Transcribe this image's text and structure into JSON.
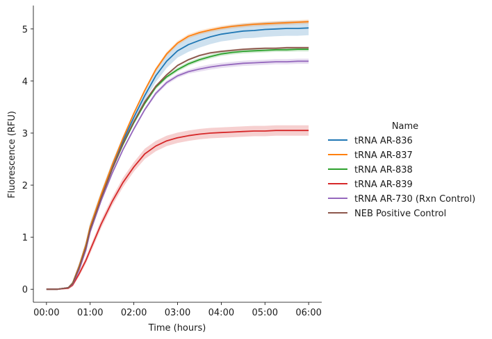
{
  "chart_data": {
    "type": "line",
    "title": "",
    "xlabel": "Time (hours)",
    "ylabel": "Fluorescence (RFU)",
    "xlim": [
      -0.3,
      6.3
    ],
    "ylim": [
      -0.25,
      5.45
    ],
    "x_ticks": [
      {
        "value": 0,
        "label": "00:00"
      },
      {
        "value": 1,
        "label": "01:00"
      },
      {
        "value": 2,
        "label": "02:00"
      },
      {
        "value": 3,
        "label": "03:00"
      },
      {
        "value": 4,
        "label": "04:00"
      },
      {
        "value": 5,
        "label": "05:00"
      },
      {
        "value": 6,
        "label": "06:00"
      }
    ],
    "y_ticks": [
      {
        "value": 0,
        "label": "0"
      },
      {
        "value": 1,
        "label": "1"
      },
      {
        "value": 2,
        "label": "2"
      },
      {
        "value": 3,
        "label": "3"
      },
      {
        "value": 4,
        "label": "4"
      },
      {
        "value": 5,
        "label": "5"
      }
    ],
    "legend_title": "Name",
    "legend_position": "right",
    "grid": false,
    "band": "confidence interval (shaded)",
    "x": [
      0,
      0.25,
      0.5,
      0.6,
      0.75,
      0.9,
      1.0,
      1.25,
      1.5,
      1.75,
      2.0,
      2.25,
      2.5,
      2.75,
      3.0,
      3.25,
      3.5,
      3.75,
      4.0,
      4.25,
      4.5,
      4.75,
      5.0,
      5.25,
      5.5,
      5.75,
      6.0
    ],
    "series": [
      {
        "name": "tRNA AR-836",
        "color": "#1f77b4",
        "values": [
          0,
          0,
          0.03,
          0.12,
          0.45,
          0.85,
          1.2,
          1.8,
          2.35,
          2.85,
          3.3,
          3.72,
          4.1,
          4.38,
          4.58,
          4.7,
          4.78,
          4.85,
          4.9,
          4.93,
          4.96,
          4.97,
          4.99,
          5.0,
          5.01,
          5.01,
          5.02
        ],
        "ci": [
          0,
          0,
          0.02,
          0.04,
          0.06,
          0.07,
          0.08,
          0.08,
          0.09,
          0.09,
          0.1,
          0.1,
          0.12,
          0.13,
          0.13,
          0.14,
          0.14,
          0.14,
          0.14,
          0.14,
          0.14,
          0.14,
          0.14,
          0.14,
          0.14,
          0.14,
          0.14
        ]
      },
      {
        "name": "tRNA AR-837",
        "color": "#ff7f0e",
        "values": [
          0,
          0,
          0.03,
          0.12,
          0.45,
          0.85,
          1.2,
          1.82,
          2.38,
          2.9,
          3.38,
          3.82,
          4.22,
          4.52,
          4.73,
          4.86,
          4.93,
          4.98,
          5.02,
          5.05,
          5.07,
          5.09,
          5.1,
          5.11,
          5.12,
          5.13,
          5.14
        ],
        "ci": [
          0,
          0,
          0.01,
          0.02,
          0.03,
          0.03,
          0.03,
          0.03,
          0.03,
          0.03,
          0.03,
          0.03,
          0.04,
          0.04,
          0.04,
          0.04,
          0.04,
          0.04,
          0.04,
          0.04,
          0.04,
          0.04,
          0.04,
          0.04,
          0.04,
          0.04,
          0.04
        ]
      },
      {
        "name": "tRNA AR-838",
        "color": "#2ca02c",
        "values": [
          0,
          0,
          0.03,
          0.11,
          0.42,
          0.8,
          1.15,
          1.75,
          2.3,
          2.78,
          3.2,
          3.57,
          3.88,
          4.08,
          4.22,
          4.33,
          4.41,
          4.47,
          4.52,
          4.55,
          4.57,
          4.58,
          4.59,
          4.6,
          4.6,
          4.61,
          4.61
        ],
        "ci": [
          0,
          0,
          0.01,
          0.02,
          0.03,
          0.03,
          0.03,
          0.03,
          0.03,
          0.03,
          0.03,
          0.03,
          0.04,
          0.04,
          0.04,
          0.04,
          0.04,
          0.04,
          0.04,
          0.04,
          0.04,
          0.04,
          0.04,
          0.04,
          0.04,
          0.04,
          0.04
        ]
      },
      {
        "name": "tRNA AR-839",
        "color": "#d62728",
        "values": [
          0,
          0,
          0.02,
          0.08,
          0.3,
          0.55,
          0.75,
          1.25,
          1.68,
          2.05,
          2.35,
          2.6,
          2.75,
          2.85,
          2.91,
          2.95,
          2.98,
          3.0,
          3.01,
          3.02,
          3.03,
          3.04,
          3.04,
          3.05,
          3.05,
          3.05,
          3.05
        ],
        "ci": [
          0,
          0,
          0.02,
          0.03,
          0.05,
          0.06,
          0.07,
          0.08,
          0.08,
          0.09,
          0.09,
          0.1,
          0.1,
          0.1,
          0.1,
          0.1,
          0.1,
          0.1,
          0.1,
          0.1,
          0.1,
          0.1,
          0.1,
          0.1,
          0.1,
          0.1,
          0.1
        ]
      },
      {
        "name": "tRNA AR-730 (Rxn Control)",
        "color": "#9467bd",
        "values": [
          0,
          0,
          0.03,
          0.1,
          0.38,
          0.75,
          1.1,
          1.7,
          2.22,
          2.68,
          3.08,
          3.45,
          3.76,
          3.97,
          4.1,
          4.18,
          4.23,
          4.27,
          4.3,
          4.32,
          4.34,
          4.35,
          4.36,
          4.37,
          4.37,
          4.38,
          4.38
        ],
        "ci": [
          0,
          0,
          0.01,
          0.02,
          0.03,
          0.03,
          0.03,
          0.03,
          0.03,
          0.03,
          0.03,
          0.03,
          0.04,
          0.04,
          0.04,
          0.04,
          0.05,
          0.05,
          0.05,
          0.05,
          0.05,
          0.05,
          0.05,
          0.05,
          0.05,
          0.05,
          0.05
        ]
      },
      {
        "name": "NEB Positive Control",
        "color": "#8c564b",
        "values": [
          0,
          0,
          0.03,
          0.11,
          0.42,
          0.8,
          1.15,
          1.75,
          2.3,
          2.8,
          3.22,
          3.6,
          3.9,
          4.12,
          4.3,
          4.41,
          4.49,
          4.54,
          4.57,
          4.59,
          4.61,
          4.62,
          4.63,
          4.63,
          4.64,
          4.64,
          4.64
        ],
        "ci": [
          0,
          0,
          0.01,
          0.02,
          0.02,
          0.02,
          0.02,
          0.02,
          0.02,
          0.02,
          0.02,
          0.02,
          0.02,
          0.02,
          0.02,
          0.02,
          0.02,
          0.02,
          0.02,
          0.02,
          0.02,
          0.02,
          0.02,
          0.02,
          0.02,
          0.02,
          0.02
        ]
      }
    ]
  }
}
